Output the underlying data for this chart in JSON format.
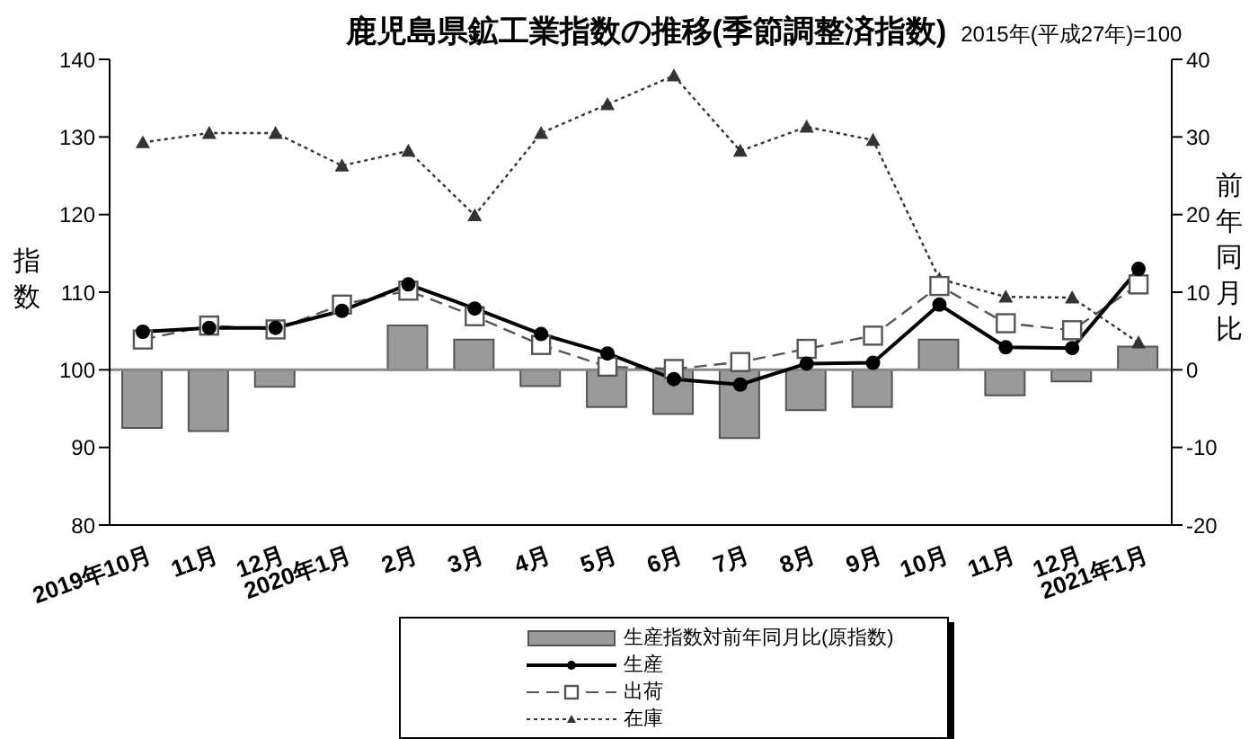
{
  "chart_data": {
    "type": "line",
    "title": "鹿児島県鉱工業指数の推移(季節調整済指数)",
    "subtitle": "2015年(平成27年)=100",
    "ylabel": "指数",
    "y2label": "前年同月比",
    "categories": [
      "2019年10月",
      "11月",
      "12月",
      "2020年1月",
      "2月",
      "3月",
      "4月",
      "5月",
      "6月",
      "7月",
      "8月",
      "9月",
      "10月",
      "11月",
      "12月",
      "2021年1月"
    ],
    "series": [
      {
        "name": "生産指数対前年同月比(原指数)",
        "type": "bar",
        "axis": "y2",
        "color": "#9a9a9a",
        "values": [
          -7.5,
          -7.9,
          -2.2,
          0,
          5.7,
          3.9,
          -2.1,
          -4.8,
          -5.7,
          -8.8,
          -5.2,
          -4.8,
          3.9,
          -3.3,
          -1.5,
          3
        ]
      },
      {
        "name": "生産",
        "color": "#000000",
        "marker": "circle",
        "line_style": "solid",
        "values": [
          104.9,
          105.4,
          105.4,
          107.6,
          111.0,
          107.9,
          104.6,
          102.1,
          98.8,
          98.1,
          100.8,
          100.9,
          108.4,
          102.9,
          102.8,
          113
        ]
      },
      {
        "name": "出荷",
        "color": "#555555",
        "marker": "square",
        "line_style": "dashed",
        "values": [
          103.9,
          105.7,
          105.2,
          108.4,
          110.2,
          106.9,
          103.2,
          100.4,
          100.1,
          101.0,
          102.7,
          104.4,
          110.8,
          106.0,
          105.1,
          111
        ]
      },
      {
        "name": "在庫",
        "color": "#333333",
        "marker": "triangle",
        "line_style": "dotted",
        "values": [
          129.3,
          130.5,
          130.5,
          126.3,
          128.2,
          119.9,
          130.5,
          134.2,
          137.9,
          128.2,
          131.3,
          129.6,
          111.7,
          109.4,
          109.3,
          103.5
        ]
      }
    ],
    "ylim": [
      80,
      140
    ],
    "yticks": [
      80,
      90,
      100,
      110,
      120,
      130,
      140
    ],
    "y2lim": [
      -20,
      40
    ],
    "y2ticks": [
      -20,
      -10,
      0,
      10,
      20,
      30,
      40
    ],
    "ref_lines": [
      {
        "axis": "y2",
        "value": 0,
        "color": "#888888"
      }
    ],
    "grid": false,
    "legend": "bottom"
  }
}
